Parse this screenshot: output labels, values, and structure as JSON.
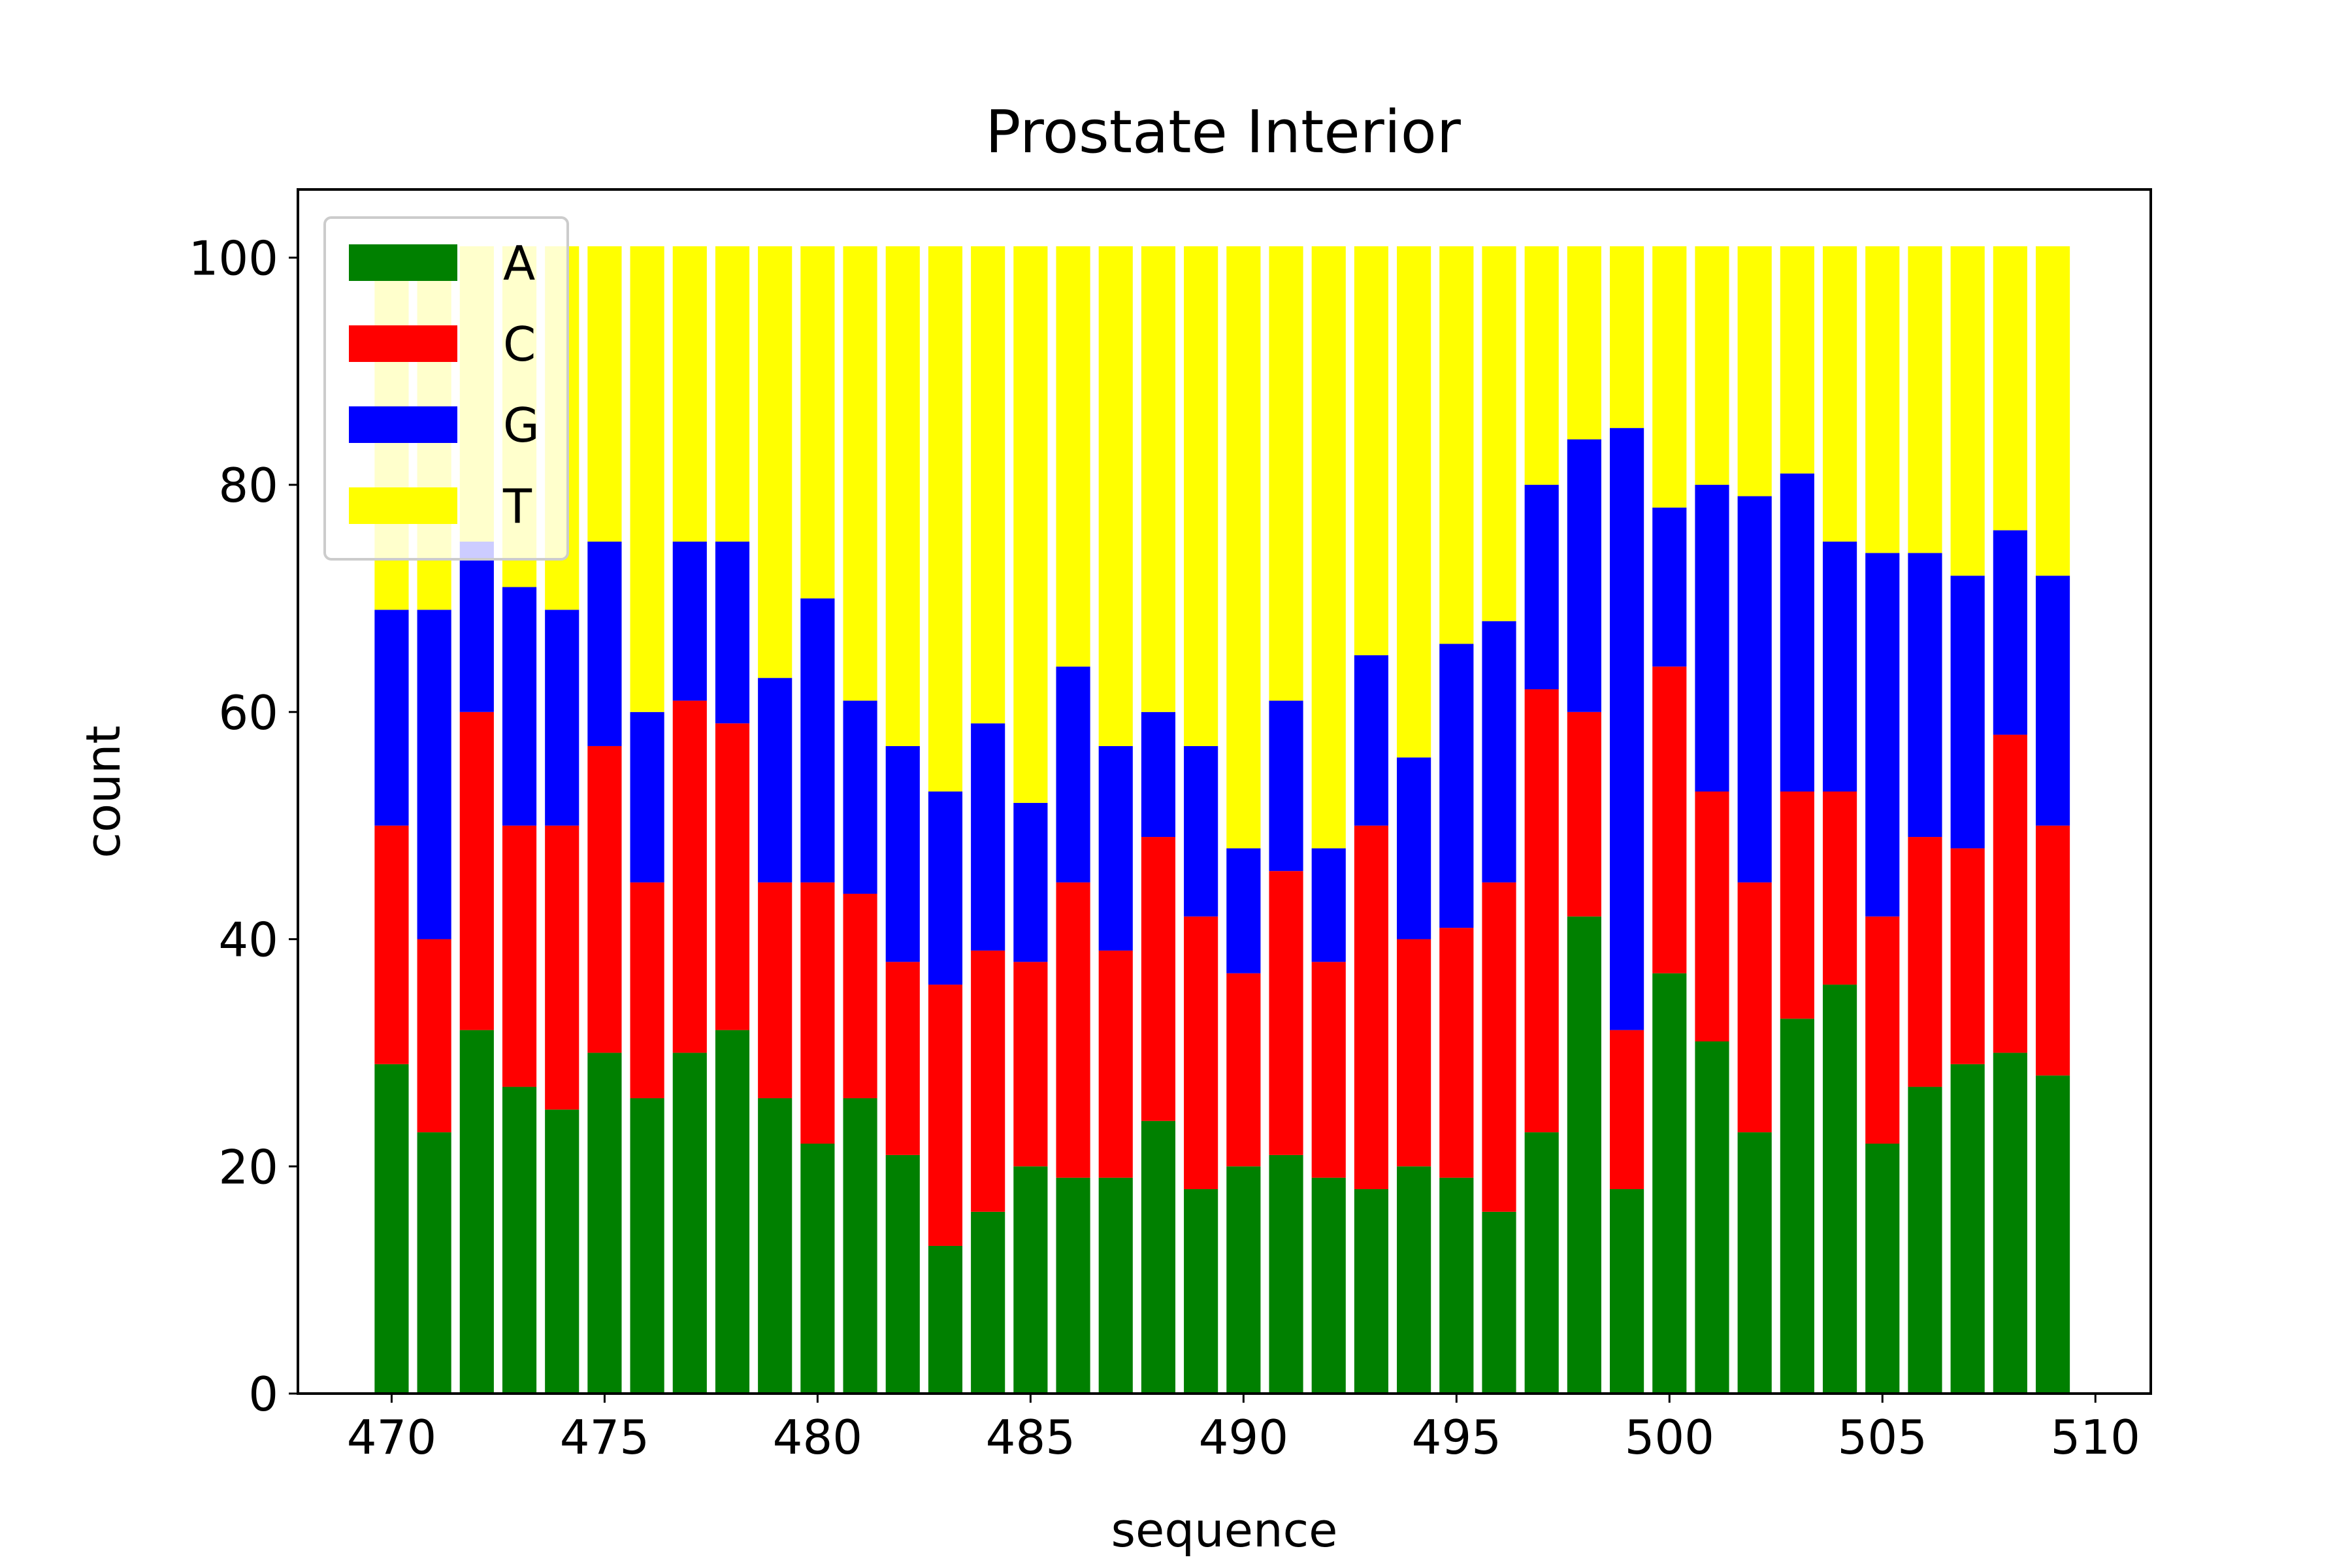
{
  "chart_data": {
    "type": "bar",
    "stacked": true,
    "title": "Prostate Interior",
    "xlabel": "sequence",
    "ylabel": "count",
    "xlim": [
      467.8,
      511.3
    ],
    "ylim": [
      0,
      106
    ],
    "x_ticks": [
      "470",
      "475",
      "480",
      "485",
      "490",
      "495",
      "500",
      "505",
      "510"
    ],
    "y_ticks": [
      "0",
      "20",
      "40",
      "60",
      "80",
      "100"
    ],
    "legend_position": "top-left",
    "x": [
      470,
      471,
      472,
      473,
      474,
      475,
      476,
      477,
      478,
      479,
      480,
      481,
      482,
      483,
      484,
      485,
      486,
      487,
      488,
      489,
      490,
      491,
      492,
      493,
      494,
      495,
      496,
      497,
      498,
      499,
      500,
      501,
      502,
      503,
      504,
      505,
      506,
      507,
      508,
      509
    ],
    "series": [
      {
        "name": "A",
        "color": "#008000",
        "values": [
          29,
          23,
          32,
          27,
          25,
          30,
          26,
          30,
          32,
          26,
          22,
          26,
          21,
          13,
          16,
          20,
          19,
          19,
          24,
          18,
          20,
          21,
          19,
          18,
          20,
          19,
          16,
          23,
          42,
          18,
          37,
          31,
          23,
          33,
          36,
          22,
          27,
          29,
          30,
          28
        ]
      },
      {
        "name": "C",
        "color": "#ff0000",
        "values": [
          21,
          17,
          28,
          23,
          25,
          27,
          19,
          31,
          27,
          19,
          23,
          18,
          17,
          23,
          23,
          18,
          26,
          20,
          25,
          24,
          17,
          25,
          19,
          32,
          20,
          22,
          29,
          39,
          18,
          14,
          27,
          22,
          22,
          20,
          17,
          20,
          22,
          19,
          28,
          22
        ]
      },
      {
        "name": "G",
        "color": "#0000ff",
        "values": [
          19,
          29,
          15,
          21,
          19,
          18,
          15,
          14,
          16,
          18,
          25,
          17,
          19,
          17,
          20,
          14,
          19,
          18,
          11,
          15,
          11,
          15,
          10,
          15,
          16,
          25,
          23,
          18,
          24,
          53,
          14,
          27,
          34,
          28,
          22,
          32,
          25,
          24,
          18,
          22
        ]
      },
      {
        "name": "T",
        "color": "#ffff00",
        "values": [
          32,
          32,
          26,
          30,
          32,
          26,
          41,
          26,
          26,
          38,
          31,
          40,
          44,
          48,
          42,
          49,
          37,
          44,
          41,
          44,
          53,
          40,
          53,
          36,
          45,
          35,
          33,
          21,
          17,
          16,
          23,
          21,
          22,
          20,
          26,
          27,
          27,
          29,
          25,
          29
        ]
      }
    ]
  }
}
